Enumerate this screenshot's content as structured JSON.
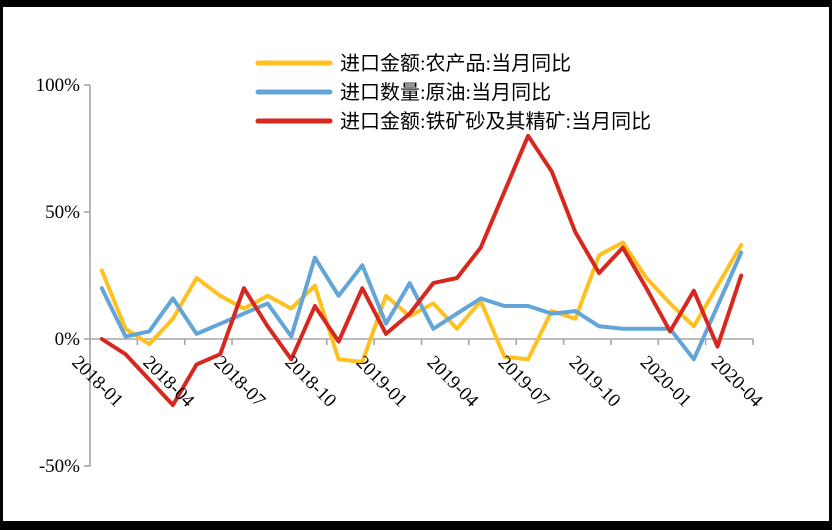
{
  "chart_data": {
    "type": "line",
    "title": "",
    "x": [
      "2018-01",
      "2018-02",
      "2018-03",
      "2018-04",
      "2018-05",
      "2018-06",
      "2018-07",
      "2018-08",
      "2018-09",
      "2018-10",
      "2018-11",
      "2018-12",
      "2019-01",
      "2019-02",
      "2019-03",
      "2019-04",
      "2019-05",
      "2019-06",
      "2019-07",
      "2019-08",
      "2019-09",
      "2019-10",
      "2019-11",
      "2019-12",
      "2020-01",
      "2020-02",
      "2020-03",
      "2020-04"
    ],
    "x_tick_labels": [
      "2018-01",
      "2018-04",
      "2018-07",
      "2018-10",
      "2019-01",
      "2019-04",
      "2019-07",
      "2019-10",
      "2020-01",
      "2020-04"
    ],
    "x_label_interval": 3,
    "series": [
      {
        "name": "进口金额:农产品:当月同比",
        "color": "#FFC120",
        "values": [
          27,
          4,
          -2,
          8,
          24,
          17,
          12,
          17,
          12,
          21,
          -8,
          -9,
          17,
          9,
          14,
          4,
          15,
          -7,
          -8,
          11,
          8,
          33,
          38,
          24,
          14,
          5,
          21,
          37
        ]
      },
      {
        "name": "进口数量:原油:当月同比",
        "color": "#63A5D8",
        "values": [
          20,
          1,
          3,
          16,
          2,
          6,
          10,
          14,
          1,
          32,
          17,
          29,
          6,
          22,
          4,
          10,
          16,
          13,
          13,
          10,
          11,
          5,
          4,
          4,
          4,
          -8,
          13,
          34
        ]
      },
      {
        "name": "进口金额:铁矿砂及其精矿:当月同比",
        "color": "#D6281E",
        "values": [
          0,
          -6,
          -16,
          -26,
          -10,
          -6,
          20,
          5,
          -8,
          13,
          -1,
          20,
          2,
          10,
          22,
          24,
          36,
          58,
          80,
          66,
          42,
          26,
          36,
          20,
          3,
          19,
          -3,
          25
        ]
      }
    ],
    "ylim": [
      -50,
      100
    ],
    "y_tick_values": [
      100,
      50,
      0,
      -50
    ],
    "y_tick_labels": [
      "100%",
      "50%",
      "0%",
      "-50%"
    ],
    "grid": false,
    "baseline_value": 0,
    "legend_position": "top-center"
  },
  "style": {
    "axis_color": "#a6a6a6",
    "text_color": "#000000",
    "background": "#ffffff",
    "frame_color": "#000000",
    "line_width": 4,
    "legend_swatch_width": 72,
    "legend_swatch_thickness": 5
  }
}
